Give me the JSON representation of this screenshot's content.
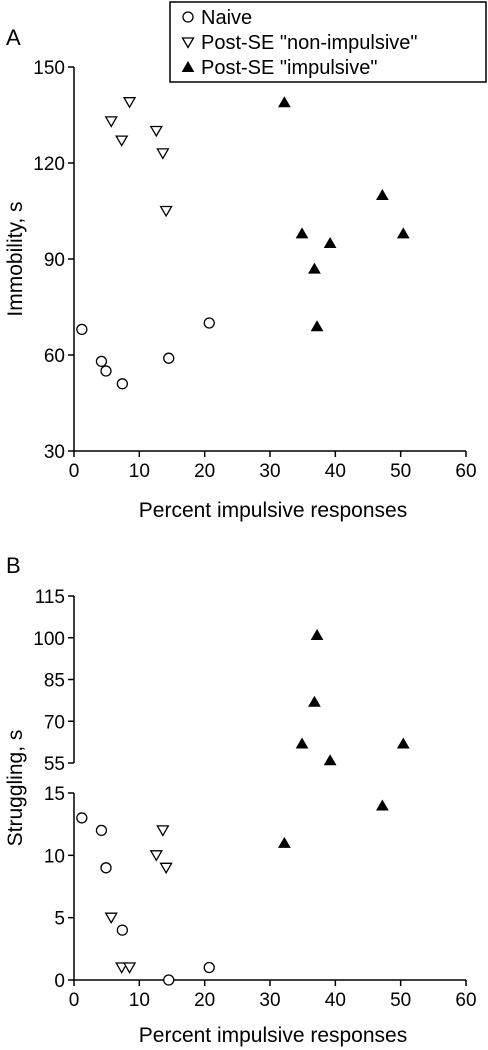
{
  "legend": [
    {
      "name": "Naive",
      "marker": "open-circle"
    },
    {
      "name": "Post-SE \"non-impulsive\"",
      "marker": "open-triangle-down"
    },
    {
      "name": "Post-SE \"impulsive\"",
      "marker": "filled-triangle-up"
    }
  ],
  "chart_data": [
    {
      "type": "scatter",
      "panel_label": "A",
      "xlabel": "Percent impulsive responses",
      "ylabel": "Immobility, s",
      "xlim": [
        0,
        60
      ],
      "ylim": [
        30,
        150
      ],
      "xticks": [
        "0",
        "10",
        "20",
        "30",
        "40",
        "50",
        "60"
      ],
      "yticks": [
        "30",
        "60",
        "90",
        "120",
        "150"
      ],
      "xtick_values": [
        0,
        10,
        20,
        30,
        40,
        50,
        60
      ],
      "ytick_values": [
        30,
        60,
        90,
        120,
        150
      ],
      "grid": false,
      "series": [
        {
          "name": "Naive",
          "marker": "open-circle",
          "points": [
            [
              1.2,
              68
            ],
            [
              4.2,
              58
            ],
            [
              4.9,
              55
            ],
            [
              7.4,
              51
            ],
            [
              14.5,
              59
            ],
            [
              20.7,
              70
            ]
          ]
        },
        {
          "name": "Post-SE \"non-impulsive\"",
          "marker": "open-triangle-down",
          "points": [
            [
              5.7,
              133
            ],
            [
              7.3,
              127
            ],
            [
              8.5,
              139
            ],
            [
              12.6,
              130
            ],
            [
              13.6,
              123
            ],
            [
              14.1,
              105
            ]
          ]
        },
        {
          "name": "Post-SE \"impulsive\"",
          "marker": "filled-triangle-up",
          "points": [
            [
              32.2,
              139
            ],
            [
              34.9,
              98
            ],
            [
              36.8,
              87
            ],
            [
              37.2,
              69
            ],
            [
              39.2,
              95
            ],
            [
              47.2,
              110
            ],
            [
              50.4,
              98
            ]
          ]
        }
      ]
    },
    {
      "type": "scatter",
      "panel_label": "B",
      "xlabel": "Percent impulsive responses",
      "ylabel": "Struggling, s",
      "xlim": [
        0,
        60
      ],
      "ylim": [
        0,
        115
      ],
      "y_axis_break": {
        "lower_range": [
          0,
          15
        ],
        "upper_range": [
          55,
          115
        ]
      },
      "xticks": [
        "0",
        "10",
        "20",
        "30",
        "40",
        "50",
        "60"
      ],
      "yticks_lower": [
        "0",
        "5",
        "10",
        "15"
      ],
      "yticks_upper": [
        "55",
        "70",
        "85",
        "100",
        "115"
      ],
      "xtick_values": [
        0,
        10,
        20,
        30,
        40,
        50,
        60
      ],
      "ytick_values_lower": [
        0,
        5,
        10,
        15
      ],
      "ytick_values_upper": [
        55,
        70,
        85,
        100,
        115
      ],
      "grid": false,
      "series": [
        {
          "name": "Naive",
          "marker": "open-circle",
          "points": [
            [
              1.2,
              13
            ],
            [
              4.2,
              12
            ],
            [
              4.9,
              9
            ],
            [
              7.4,
              4
            ],
            [
              14.5,
              0
            ],
            [
              20.7,
              1
            ]
          ]
        },
        {
          "name": "Post-SE \"non-impulsive\"",
          "marker": "open-triangle-down",
          "points": [
            [
              5.7,
              5
            ],
            [
              7.3,
              1
            ],
            [
              8.5,
              1
            ],
            [
              12.6,
              10
            ],
            [
              13.6,
              12
            ],
            [
              14.1,
              9
            ]
          ]
        },
        {
          "name": "Post-SE \"impulsive\"",
          "marker": "filled-triangle-up",
          "points": [
            [
              32.2,
              11
            ],
            [
              34.9,
              62
            ],
            [
              36.8,
              77
            ],
            [
              37.2,
              101
            ],
            [
              39.2,
              56
            ],
            [
              47.2,
              14
            ],
            [
              50.4,
              62
            ]
          ]
        }
      ]
    }
  ]
}
